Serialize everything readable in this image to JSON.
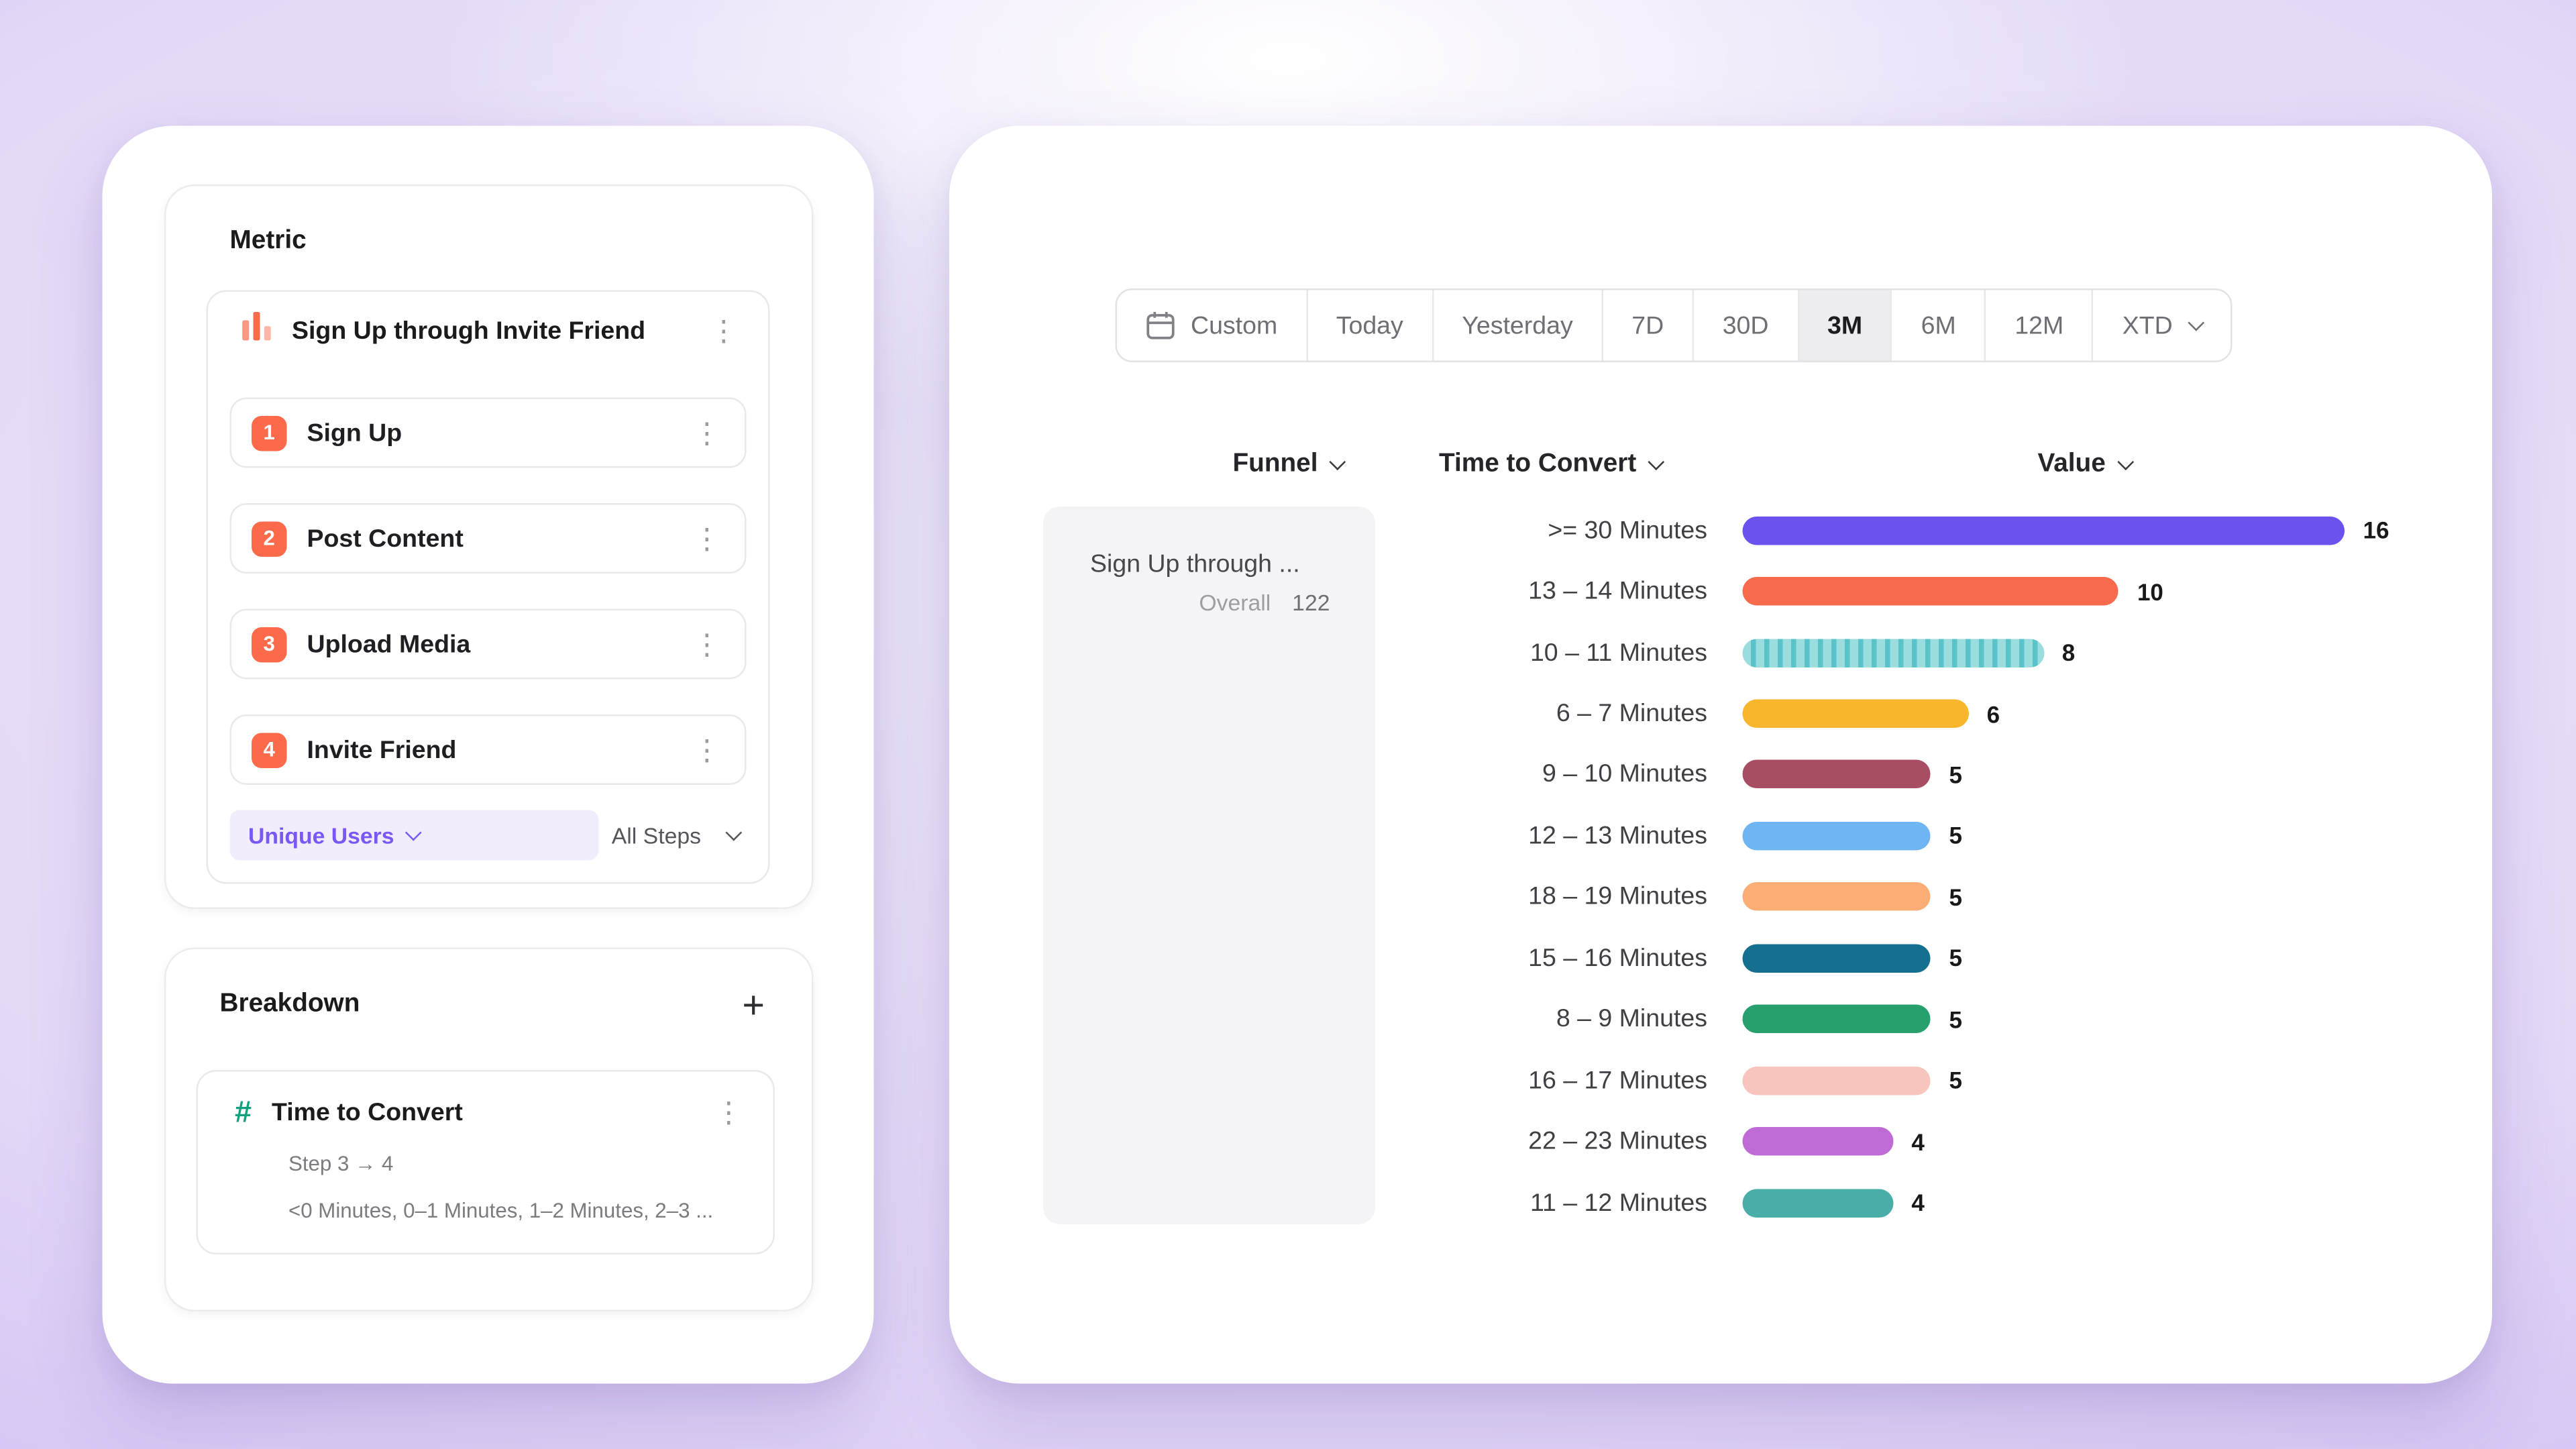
{
  "metric_panel": {
    "title": "Metric",
    "funnel": {
      "name": "Sign Up through Invite Friend",
      "badge_color": "#FB6B4B",
      "steps": [
        {
          "number": "1",
          "label": "Sign Up"
        },
        {
          "number": "2",
          "label": "Post Content"
        },
        {
          "number": "3",
          "label": "Upload Media"
        },
        {
          "number": "4",
          "label": "Invite Friend"
        }
      ],
      "counting_label": "Unique Users",
      "steps_scope_label": "All Steps"
    }
  },
  "breakdown_panel": {
    "title": "Breakdown",
    "add_button": "+",
    "property": {
      "name": "Time to Convert",
      "icon_color": "#12A07E",
      "step_range": "Step 3 → 4",
      "buckets_preview": "<0 Minutes, 0–1 Minutes, 1–2 Minutes, 2–3 ..."
    }
  },
  "report_panel": {
    "date_range": {
      "selected": "3M",
      "options": [
        {
          "label": "Custom",
          "icon": "calendar",
          "selected": false
        },
        {
          "label": "Today",
          "selected": false
        },
        {
          "label": "Yesterday",
          "selected": false
        },
        {
          "label": "7D",
          "selected": false
        },
        {
          "label": "30D",
          "selected": false
        },
        {
          "label": "3M",
          "selected": true
        },
        {
          "label": "6M",
          "selected": false
        },
        {
          "label": "12M",
          "selected": false
        },
        {
          "label": "XTD",
          "chevron": true,
          "selected": false
        }
      ]
    },
    "column_headers": [
      {
        "label": "Funnel"
      },
      {
        "label": "Time to Convert"
      },
      {
        "label": "Value"
      }
    ],
    "funnel_summary": {
      "name": "Sign Up through ...",
      "overall_label": "Overall",
      "overall_value": "122"
    }
  },
  "chart_data": {
    "type": "bar",
    "orientation": "horizontal",
    "xlabel": "Value",
    "ylabel": "Time to Convert",
    "xlim": [
      0,
      16
    ],
    "categories": [
      ">= 30 Minutes",
      "13 – 14 Minutes",
      "10 – 11 Minutes",
      "6 – 7 Minutes",
      "9 – 10 Minutes",
      "12 – 13 Minutes",
      "18 – 19 Minutes",
      "15 – 16 Minutes",
      "8 – 9 Minutes",
      "16 – 17 Minutes",
      "22 – 23 Minutes",
      "11 – 12 Minutes"
    ],
    "values": [
      16,
      10,
      8,
      6,
      5,
      5,
      5,
      5,
      5,
      5,
      4,
      4
    ],
    "colors": [
      "#6B51EE",
      "#F76A4C",
      "#8ED8DA",
      "#F8B62C",
      "#A74E63",
      "#6FB5F1",
      "#FCAD75",
      "#15708F",
      "#27A06E",
      "#F8C4BE",
      "#BF6BD5",
      "#48AEA7"
    ],
    "hatched_index": 2,
    "hatch_colors": [
      "#9BDCDE",
      "#58C3C9"
    ]
  }
}
